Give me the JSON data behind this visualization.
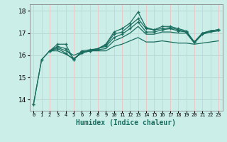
{
  "bg_color": "#cceee8",
  "grid_color_h": "#b8d8d4",
  "grid_color_v": "#e8c8c8",
  "line_color": "#1a6e60",
  "xlabel": "Humidex (Indice chaleur)",
  "ylim": [
    13.5,
    18.3
  ],
  "xlim": [
    -0.5,
    23.5
  ],
  "yticks": [
    14,
    15,
    16,
    17,
    18
  ],
  "xtick_labels": [
    "0",
    "1",
    "2",
    "3",
    "4",
    "5",
    "6",
    "7",
    "8",
    "9",
    "10",
    "11",
    "12",
    "13",
    "14",
    "15",
    "16",
    "17",
    "18",
    "19",
    "20",
    "21",
    "22",
    "23"
  ],
  "lines": [
    {
      "x": [
        0,
        1,
        2,
        3,
        4,
        5,
        6,
        7,
        8,
        9,
        10,
        11,
        12,
        13,
        14,
        15,
        16,
        17,
        18,
        19,
        20,
        21,
        22,
        23
      ],
      "y": [
        13.8,
        15.8,
        16.2,
        16.5,
        16.5,
        15.8,
        16.15,
        16.2,
        16.3,
        16.45,
        16.95,
        17.05,
        17.35,
        17.65,
        17.2,
        17.15,
        17.3,
        17.3,
        17.2,
        17.1,
        16.6,
        17.0,
        17.1,
        17.15
      ],
      "marker": true
    },
    {
      "x": [
        0,
        1,
        2,
        3,
        4,
        5,
        6,
        7,
        8,
        9,
        10,
        11,
        12,
        13,
        14,
        15,
        16,
        17,
        18,
        19,
        20,
        21,
        22,
        23
      ],
      "y": [
        13.8,
        15.8,
        16.2,
        16.3,
        16.1,
        15.8,
        16.2,
        16.25,
        16.3,
        16.5,
        17.05,
        17.2,
        17.45,
        17.95,
        17.25,
        17.15,
        17.2,
        17.25,
        17.15,
        17.05,
        16.6,
        16.95,
        17.1,
        17.15
      ],
      "marker": true
    },
    {
      "x": [
        2,
        3,
        4,
        5,
        6,
        7,
        8,
        9,
        10,
        11,
        12,
        13,
        14,
        15,
        16,
        17,
        18,
        19,
        20,
        21,
        22,
        23
      ],
      "y": [
        16.2,
        16.4,
        16.3,
        15.85,
        16.1,
        16.2,
        16.3,
        16.4,
        16.8,
        16.95,
        17.2,
        17.5,
        17.05,
        17.05,
        17.15,
        17.2,
        17.1,
        17.05,
        16.6,
        17.0,
        17.1,
        17.15
      ],
      "marker": true
    },
    {
      "x": [
        2,
        3,
        4,
        5,
        6,
        7,
        8,
        9,
        10,
        11,
        12,
        13,
        14,
        15,
        16,
        17,
        18,
        19,
        20,
        21,
        22,
        23
      ],
      "y": [
        16.2,
        16.35,
        16.2,
        16.0,
        16.15,
        16.2,
        16.25,
        16.3,
        16.65,
        16.8,
        17.0,
        17.3,
        16.95,
        16.95,
        17.05,
        17.05,
        17.0,
        17.0,
        16.55,
        16.95,
        17.05,
        17.1
      ],
      "marker": false
    },
    {
      "x": [
        2,
        3,
        4,
        5,
        6,
        7,
        8,
        9,
        10,
        11,
        12,
        13,
        14,
        15,
        16,
        17,
        18,
        19,
        20,
        21,
        22,
        23
      ],
      "y": [
        16.2,
        16.2,
        16.05,
        15.85,
        16.1,
        16.2,
        16.2,
        16.2,
        16.4,
        16.5,
        16.65,
        16.8,
        16.6,
        16.6,
        16.65,
        16.6,
        16.55,
        16.55,
        16.5,
        16.55,
        16.6,
        16.65
      ],
      "marker": false
    }
  ]
}
